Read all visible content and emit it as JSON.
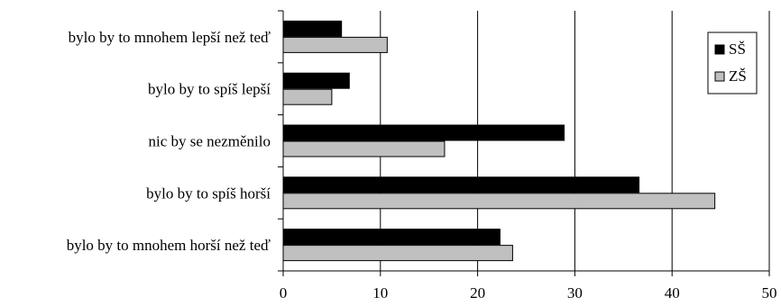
{
  "chart_data": {
    "type": "bar",
    "orientation": "horizontal",
    "categories": [
      "bylo by to mnohem lepší než teď",
      "bylo by to spíš lepší",
      "nic by se nezměnilo",
      "bylo by to spíš horší",
      "bylo by to mnohem horší než teď"
    ],
    "series": [
      {
        "name": "SŠ",
        "color": "#000000",
        "values": [
          6,
          6.8,
          28.9,
          36.6,
          22.3
        ]
      },
      {
        "name": "ZŠ",
        "color": "#c0c0c0",
        "values": [
          10.7,
          5,
          16.6,
          44.4,
          23.6
        ]
      }
    ],
    "xlim": [
      0,
      50
    ],
    "xticks": [
      0,
      10,
      20,
      30,
      40,
      50
    ],
    "grid": true,
    "legend_position": "top-right",
    "title": "",
    "xlabel": "",
    "ylabel": ""
  }
}
